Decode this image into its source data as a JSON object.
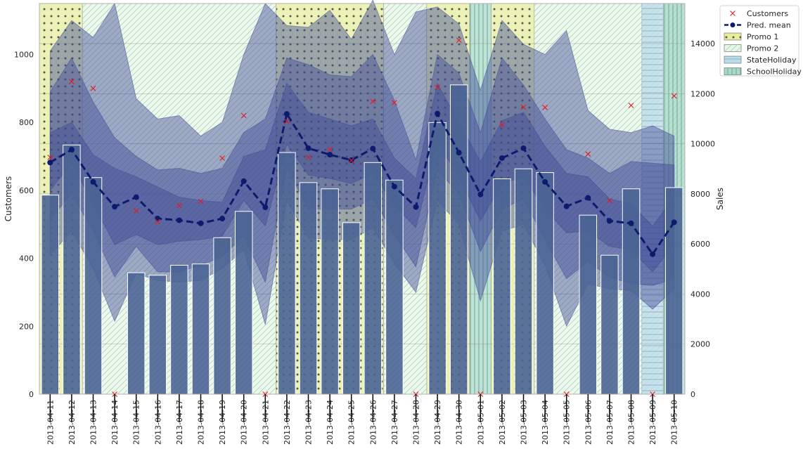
{
  "chart_data": {
    "type": "bar+line",
    "categories": [
      "2013-04-11",
      "2013-04-12",
      "2013-04-13",
      "2013-04-14",
      "2013-04-15",
      "2013-04-16",
      "2013-04-17",
      "2013-04-18",
      "2013-04-19",
      "2013-04-20",
      "2013-04-21",
      "2013-04-22",
      "2013-04-23",
      "2013-04-24",
      "2013-04-25",
      "2013-04-26",
      "2013-04-27",
      "2013-04-28",
      "2013-04-29",
      "2013-04-30",
      "2013-05-01",
      "2013-05-02",
      "2013-05-03",
      "2013-05-04",
      "2013-05-05",
      "2013-05-06",
      "2013-05-07",
      "2013-05-08",
      "2013-05-09",
      "2013-05-10"
    ],
    "left_axis": {
      "label": "Customers",
      "ylim": [
        0,
        1150
      ],
      "ticks": [
        0,
        200,
        400,
        600,
        800,
        1000
      ]
    },
    "right_axis": {
      "label": "Sales",
      "ylim": [
        0,
        15600
      ],
      "ticks": [
        0,
        2000,
        4000,
        6000,
        8000,
        10000,
        12000,
        14000
      ]
    },
    "series": [
      {
        "name": "Customers",
        "kind": "scatter",
        "marker": "x",
        "color": "#e31a1c",
        "axis": "left",
        "values": [
          697,
          920,
          900,
          0,
          540,
          508,
          555,
          568,
          695,
          820,
          0,
          803,
          697,
          720,
          688,
          862,
          858,
          0,
          903,
          1042,
          0,
          793,
          845,
          844,
          0,
          707,
          570,
          850,
          0,
          878
        ]
      },
      {
        "name": "Pred. mean",
        "kind": "line",
        "style": "dashed",
        "marker": "o",
        "color": "#0d1b6e",
        "axis": "left",
        "values": [
          682,
          720,
          625,
          552,
          580,
          517,
          512,
          503,
          517,
          627,
          550,
          825,
          724,
          705,
          689,
          723,
          611,
          551,
          826,
          711,
          588,
          695,
          724,
          625,
          553,
          578,
          510,
          503,
          412,
          506
        ]
      },
      {
        "name": "Sales",
        "kind": "bar",
        "color": "#4a6494",
        "axis": "right",
        "values": [
          7950,
          9950,
          8650,
          0,
          4850,
          4750,
          5150,
          5200,
          6250,
          7300,
          0,
          9650,
          8450,
          8200,
          6850,
          9250,
          8550,
          0,
          10850,
          12350,
          0,
          8600,
          9000,
          8850,
          0,
          7150,
          5550,
          8200,
          0,
          8250
        ]
      }
    ],
    "intervals": [
      {
        "lower": [
          600,
          680,
          560,
          440,
          470,
          440,
          450,
          455,
          465,
          570,
          495,
          735,
          645,
          635,
          620,
          650,
          555,
          490,
          740,
          640,
          510,
          620,
          640,
          545,
          475,
          480,
          435,
          425,
          360,
          440
        ],
        "upper": [
          770,
          800,
          705,
          665,
          640,
          610,
          580,
          570,
          565,
          700,
          720,
          915,
          830,
          810,
          790,
          810,
          695,
          635,
          915,
          800,
          685,
          805,
          830,
          730,
          650,
          640,
          575,
          560,
          495,
          580
        ]
      },
      {
        "lower": [
          515,
          590,
          480,
          345,
          435,
          360,
          360,
          380,
          405,
          465,
          330,
          665,
          545,
          545,
          545,
          575,
          470,
          375,
          660,
          590,
          420,
          545,
          575,
          455,
          340,
          390,
          345,
          325,
          320,
          340
        ],
        "upper": [
          890,
          990,
          860,
          755,
          700,
          660,
          665,
          650,
          665,
          770,
          810,
          990,
          970,
          940,
          935,
          1000,
          865,
          690,
          1000,
          945,
          770,
          990,
          910,
          810,
          720,
          695,
          650,
          685,
          680,
          675
        ]
      },
      {
        "lower": [
          410,
          480,
          370,
          215,
          355,
          335,
          330,
          335,
          370,
          425,
          205,
          570,
          460,
          455,
          455,
          490,
          385,
          300,
          570,
          500,
          275,
          480,
          500,
          380,
          200,
          325,
          310,
          305,
          250,
          310
        ],
        "upper": [
          1010,
          1100,
          1050,
          1150,
          870,
          810,
          820,
          760,
          800,
          1000,
          1150,
          1085,
          1080,
          1130,
          1045,
          1160,
          1000,
          1125,
          1140,
          1090,
          895,
          1100,
          1030,
          1000,
          1070,
          835,
          780,
          770,
          790,
          760
        ]
      }
    ],
    "shaded_regions": [
      {
        "name": "Promo 1",
        "color": "#e6ee9c",
        "hatch": "dots",
        "ranges": [
          [
            0,
            1
          ],
          [
            11,
            15
          ],
          [
            18,
            19
          ],
          [
            21,
            22
          ]
        ]
      },
      {
        "name": "Promo 2",
        "color": "#e8f5e9",
        "hatch": "diagonal",
        "ranges": [
          [
            2,
            10
          ],
          [
            16,
            17
          ],
          [
            23,
            30
          ]
        ]
      },
      {
        "name": "StateHoliday",
        "color": "#bcdcec",
        "hatch": "horizontal",
        "ranges": [
          [
            28,
            28
          ]
        ]
      },
      {
        "name": "SchoolHoliday",
        "color": "#a8d8c8",
        "hatch": "vertical",
        "ranges": [
          [
            20,
            20
          ],
          [
            29,
            30
          ]
        ]
      }
    ],
    "legend": {
      "placement": "outside-right-top",
      "items": [
        "Customers",
        "Pred. mean",
        "Promo 1",
        "Promo 2",
        "StateHoliday",
        "SchoolHoliday"
      ]
    },
    "grid": true,
    "colors": {
      "band": "#3f4a95",
      "bar": "#4a6494",
      "marker": "#e31a1c",
      "line": "#0d1b6e"
    }
  }
}
